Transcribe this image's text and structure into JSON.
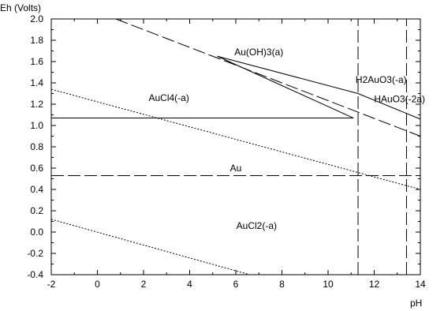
{
  "chart_data": {
    "type": "line",
    "title": "",
    "xlabel": "pH",
    "ylabel": "Eh (Volts)",
    "xlim": [
      -2,
      14
    ],
    "ylim": [
      -0.4,
      2.0
    ],
    "x_ticks": [
      -2,
      0,
      2,
      4,
      6,
      8,
      10,
      12,
      14
    ],
    "y_ticks": [
      -0.4,
      -0.2,
      0.0,
      0.2,
      0.4,
      0.6,
      0.8,
      1.0,
      1.2,
      1.4,
      1.6,
      1.8,
      2.0
    ],
    "x_tick_labels": [
      "-2",
      "0",
      "2",
      "4",
      "6",
      "8",
      "10",
      "12",
      "14"
    ],
    "y_tick_labels": [
      "-0.4",
      "-0.2",
      "0.0",
      "0.2",
      "0.4",
      "0.6",
      "0.8",
      "1.0",
      "1.2",
      "1.4",
      "1.6",
      "1.8",
      "2.0"
    ],
    "grid": false,
    "series": [
      {
        "style": "dashed",
        "x": [
          0.8,
          14.0
        ],
        "y": [
          2.0,
          0.9
        ]
      },
      {
        "style": "dashed",
        "x": [
          -2.0,
          14.0
        ],
        "y": [
          0.53,
          0.53
        ]
      },
      {
        "style": "dashed",
        "x": [
          11.3,
          11.3
        ],
        "y": [
          -0.4,
          2.0
        ]
      },
      {
        "style": "dashed",
        "x": [
          13.4,
          13.4
        ],
        "y": [
          -0.4,
          2.0
        ]
      },
      {
        "style": "dotted",
        "x": [
          -2.0,
          14.0
        ],
        "y": [
          1.34,
          0.4
        ]
      },
      {
        "style": "dotted",
        "x": [
          -2.0,
          6.6
        ],
        "y": [
          0.12,
          -0.4
        ]
      },
      {
        "style": "solid",
        "x": [
          -2.0,
          11.1
        ],
        "y": [
          1.07,
          1.07
        ]
      },
      {
        "style": "solid",
        "x": [
          5.2,
          11.1
        ],
        "y": [
          1.65,
          1.07
        ]
      },
      {
        "style": "solid",
        "x": [
          5.2,
          11.3
        ],
        "y": [
          1.65,
          1.3
        ]
      },
      {
        "style": "solid",
        "x": [
          11.3,
          14.0
        ],
        "y": [
          1.3,
          1.06
        ]
      }
    ],
    "annotations": [
      {
        "text": "Au(OH)3(a)",
        "x": 7.0,
        "y": 1.69
      },
      {
        "text": "AuCl4(-a)",
        "x": 3.1,
        "y": 1.26
      },
      {
        "text": "H2AuO3(-a)",
        "x": 12.3,
        "y": 1.43
      },
      {
        "text": "HAuO3(-2a)",
        "x": 13.1,
        "y": 1.25
      },
      {
        "text": "Au",
        "x": 6.0,
        "y": 0.6
      },
      {
        "text": "AuCl2(-a)",
        "x": 6.9,
        "y": 0.06
      }
    ],
    "colors": {
      "line": "#000000",
      "frame": "#000000",
      "background": "#ffffff"
    }
  }
}
